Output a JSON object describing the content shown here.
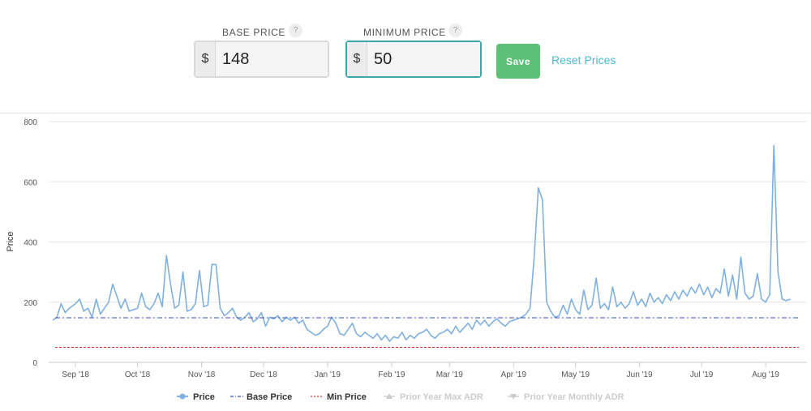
{
  "form": {
    "base_price": {
      "label": "BASE PRICE",
      "currency": "$",
      "value": "148",
      "help": "?"
    },
    "minimum_price": {
      "label": "MINIMUM PRICE",
      "currency": "$",
      "value": "50",
      "help": "?"
    },
    "save_label": "Save",
    "reset_label": "Reset Prices",
    "colors": {
      "save_bg": "#5cc176",
      "reset_link": "#4ab9d6",
      "focus_border": "#3aa8a8"
    }
  },
  "chart_data": {
    "type": "line",
    "ylabel": "Price",
    "ylim": [
      0,
      800
    ],
    "yticks": [
      0,
      200,
      400,
      600,
      800
    ],
    "grid": true,
    "legend_position": "bottom-center",
    "x_range": [
      "2018-08-19",
      "2019-08-21"
    ],
    "x_ticks": [
      {
        "date": "2018-09-01",
        "label": "Sep '18"
      },
      {
        "date": "2018-10-01",
        "label": "Oct '18"
      },
      {
        "date": "2018-11-01",
        "label": "Nov '18"
      },
      {
        "date": "2018-12-01",
        "label": "Dec '18"
      },
      {
        "date": "2019-01-01",
        "label": "Jan '19"
      },
      {
        "date": "2019-02-01",
        "label": "Feb '19"
      },
      {
        "date": "2019-03-01",
        "label": "Mar '19"
      },
      {
        "date": "2019-04-01",
        "label": "Apr '19"
      },
      {
        "date": "2019-05-01",
        "label": "May '19"
      },
      {
        "date": "2019-06-01",
        "label": "Jun '19"
      },
      {
        "date": "2019-07-01",
        "label": "Jul '19"
      },
      {
        "date": "2019-08-01",
        "label": "Aug '19"
      }
    ],
    "series": [
      {
        "name": "Price",
        "color": "#7fb0e0",
        "style": "solid",
        "marker": "circle",
        "points": [
          [
            "2018-08-21",
            140
          ],
          [
            "2018-08-23",
            150
          ],
          [
            "2018-08-25",
            195
          ],
          [
            "2018-08-27",
            165
          ],
          [
            "2018-08-29",
            180
          ],
          [
            "2018-09-01",
            195
          ],
          [
            "2018-09-03",
            210
          ],
          [
            "2018-09-05",
            170
          ],
          [
            "2018-09-07",
            180
          ],
          [
            "2018-09-09",
            150
          ],
          [
            "2018-09-11",
            210
          ],
          [
            "2018-09-13",
            160
          ],
          [
            "2018-09-15",
            180
          ],
          [
            "2018-09-17",
            200
          ],
          [
            "2018-09-19",
            260
          ],
          [
            "2018-09-21",
            220
          ],
          [
            "2018-09-23",
            180
          ],
          [
            "2018-09-25",
            210
          ],
          [
            "2018-09-27",
            170
          ],
          [
            "2018-09-29",
            175
          ],
          [
            "2018-10-01",
            180
          ],
          [
            "2018-10-03",
            230
          ],
          [
            "2018-10-05",
            185
          ],
          [
            "2018-10-07",
            175
          ],
          [
            "2018-10-09",
            195
          ],
          [
            "2018-10-11",
            230
          ],
          [
            "2018-10-13",
            185
          ],
          [
            "2018-10-15",
            355
          ],
          [
            "2018-10-17",
            260
          ],
          [
            "2018-10-19",
            180
          ],
          [
            "2018-10-21",
            190
          ],
          [
            "2018-10-23",
            300
          ],
          [
            "2018-10-25",
            170
          ],
          [
            "2018-10-27",
            175
          ],
          [
            "2018-10-29",
            195
          ],
          [
            "2018-10-31",
            305
          ],
          [
            "2018-11-02",
            185
          ],
          [
            "2018-11-04",
            190
          ],
          [
            "2018-11-06",
            325
          ],
          [
            "2018-11-08",
            325
          ],
          [
            "2018-11-10",
            180
          ],
          [
            "2018-11-12",
            155
          ],
          [
            "2018-11-14",
            165
          ],
          [
            "2018-11-16",
            180
          ],
          [
            "2018-11-18",
            150
          ],
          [
            "2018-11-20",
            140
          ],
          [
            "2018-11-22",
            150
          ],
          [
            "2018-11-24",
            165
          ],
          [
            "2018-11-26",
            135
          ],
          [
            "2018-11-28",
            145
          ],
          [
            "2018-11-30",
            165
          ],
          [
            "2018-12-02",
            120
          ],
          [
            "2018-12-04",
            150
          ],
          [
            "2018-12-06",
            145
          ],
          [
            "2018-12-08",
            155
          ],
          [
            "2018-12-10",
            135
          ],
          [
            "2018-12-12",
            150
          ],
          [
            "2018-12-14",
            140
          ],
          [
            "2018-12-16",
            150
          ],
          [
            "2018-12-18",
            130
          ],
          [
            "2018-12-20",
            140
          ],
          [
            "2018-12-22",
            110
          ],
          [
            "2018-12-24",
            100
          ],
          [
            "2018-12-26",
            90
          ],
          [
            "2018-12-28",
            95
          ],
          [
            "2018-12-30",
            110
          ],
          [
            "2019-01-01",
            120
          ],
          [
            "2019-01-03",
            150
          ],
          [
            "2019-01-05",
            130
          ],
          [
            "2019-01-07",
            95
          ],
          [
            "2019-01-09",
            90
          ],
          [
            "2019-01-11",
            110
          ],
          [
            "2019-01-13",
            130
          ],
          [
            "2019-01-15",
            95
          ],
          [
            "2019-01-17",
            85
          ],
          [
            "2019-01-19",
            100
          ],
          [
            "2019-01-21",
            90
          ],
          [
            "2019-01-23",
            80
          ],
          [
            "2019-01-25",
            95
          ],
          [
            "2019-01-27",
            75
          ],
          [
            "2019-01-29",
            90
          ],
          [
            "2019-01-31",
            70
          ],
          [
            "2019-02-02",
            85
          ],
          [
            "2019-02-04",
            80
          ],
          [
            "2019-02-06",
            100
          ],
          [
            "2019-02-08",
            75
          ],
          [
            "2019-02-10",
            90
          ],
          [
            "2019-02-12",
            80
          ],
          [
            "2019-02-14",
            95
          ],
          [
            "2019-02-16",
            100
          ],
          [
            "2019-02-18",
            110
          ],
          [
            "2019-02-20",
            90
          ],
          [
            "2019-02-22",
            80
          ],
          [
            "2019-02-24",
            95
          ],
          [
            "2019-02-26",
            100
          ],
          [
            "2019-02-28",
            110
          ],
          [
            "2019-03-02",
            95
          ],
          [
            "2019-03-04",
            120
          ],
          [
            "2019-03-06",
            100
          ],
          [
            "2019-03-08",
            115
          ],
          [
            "2019-03-10",
            130
          ],
          [
            "2019-03-12",
            110
          ],
          [
            "2019-03-14",
            140
          ],
          [
            "2019-03-16",
            125
          ],
          [
            "2019-03-18",
            140
          ],
          [
            "2019-03-20",
            120
          ],
          [
            "2019-03-22",
            135
          ],
          [
            "2019-03-24",
            145
          ],
          [
            "2019-03-26",
            130
          ],
          [
            "2019-03-28",
            120
          ],
          [
            "2019-03-30",
            135
          ],
          [
            "2019-04-01",
            140
          ],
          [
            "2019-04-03",
            145
          ],
          [
            "2019-04-05",
            150
          ],
          [
            "2019-04-07",
            160
          ],
          [
            "2019-04-09",
            180
          ],
          [
            "2019-04-11",
            350
          ],
          [
            "2019-04-13",
            580
          ],
          [
            "2019-04-15",
            540
          ],
          [
            "2019-04-17",
            200
          ],
          [
            "2019-04-19",
            170
          ],
          [
            "2019-04-21",
            150
          ],
          [
            "2019-04-23",
            155
          ],
          [
            "2019-04-25",
            190
          ],
          [
            "2019-04-27",
            160
          ],
          [
            "2019-04-29",
            210
          ],
          [
            "2019-05-01",
            175
          ],
          [
            "2019-05-03",
            160
          ],
          [
            "2019-05-05",
            240
          ],
          [
            "2019-05-07",
            175
          ],
          [
            "2019-05-09",
            190
          ],
          [
            "2019-05-11",
            280
          ],
          [
            "2019-05-13",
            180
          ],
          [
            "2019-05-15",
            195
          ],
          [
            "2019-05-17",
            175
          ],
          [
            "2019-05-19",
            250
          ],
          [
            "2019-05-21",
            185
          ],
          [
            "2019-05-23",
            200
          ],
          [
            "2019-05-25",
            180
          ],
          [
            "2019-05-27",
            195
          ],
          [
            "2019-05-29",
            235
          ],
          [
            "2019-05-31",
            190
          ],
          [
            "2019-06-02",
            210
          ],
          [
            "2019-06-04",
            185
          ],
          [
            "2019-06-06",
            230
          ],
          [
            "2019-06-08",
            200
          ],
          [
            "2019-06-10",
            215
          ],
          [
            "2019-06-12",
            195
          ],
          [
            "2019-06-14",
            225
          ],
          [
            "2019-06-16",
            205
          ],
          [
            "2019-06-18",
            235
          ],
          [
            "2019-06-20",
            210
          ],
          [
            "2019-06-22",
            240
          ],
          [
            "2019-06-24",
            220
          ],
          [
            "2019-06-26",
            250
          ],
          [
            "2019-06-28",
            230
          ],
          [
            "2019-06-30",
            260
          ],
          [
            "2019-07-02",
            225
          ],
          [
            "2019-07-04",
            250
          ],
          [
            "2019-07-06",
            215
          ],
          [
            "2019-07-08",
            245
          ],
          [
            "2019-07-10",
            230
          ],
          [
            "2019-07-12",
            310
          ],
          [
            "2019-07-14",
            220
          ],
          [
            "2019-07-16",
            290
          ],
          [
            "2019-07-18",
            210
          ],
          [
            "2019-07-20",
            350
          ],
          [
            "2019-07-22",
            230
          ],
          [
            "2019-07-24",
            210
          ],
          [
            "2019-07-26",
            220
          ],
          [
            "2019-07-28",
            295
          ],
          [
            "2019-07-30",
            210
          ],
          [
            "2019-08-01",
            200
          ],
          [
            "2019-08-03",
            225
          ],
          [
            "2019-08-05",
            720
          ],
          [
            "2019-08-07",
            300
          ],
          [
            "2019-08-09",
            210
          ],
          [
            "2019-08-11",
            205
          ],
          [
            "2019-08-13",
            210
          ]
        ]
      },
      {
        "name": "Base Price",
        "color": "#3a4fb8",
        "style": "dashdot",
        "constant": 148
      },
      {
        "name": "Min Price",
        "color": "#d9342b",
        "style": "dotted",
        "constant": 50
      },
      {
        "name": "Prior Year Max ADR",
        "color": "#cccccc",
        "style": "hidden",
        "marker": "triangle-up"
      },
      {
        "name": "Prior Year Monthly ADR",
        "color": "#cccccc",
        "style": "hidden",
        "marker": "triangle-down"
      }
    ]
  }
}
